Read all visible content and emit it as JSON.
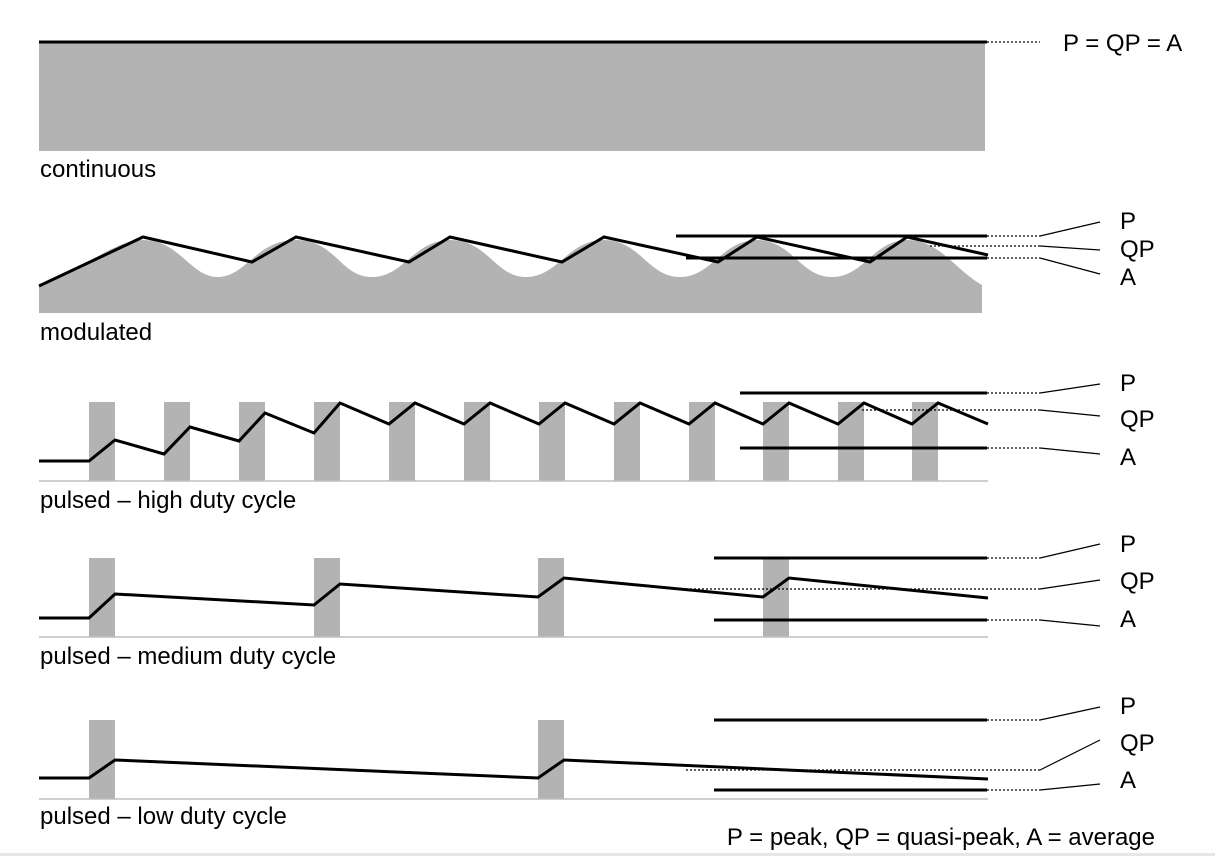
{
  "diagram": {
    "top_label": "P = QP = A",
    "legend": "P = peak, QP = quasi-peak, A = average",
    "colors": {
      "fill": "#b3b3b3",
      "line": "#000000",
      "baseline": "#bfbfbf"
    },
    "panels": [
      {
        "id": "continuous",
        "caption": "continuous"
      },
      {
        "id": "modulated",
        "caption": "modulated",
        "labels": {
          "p": "P",
          "qp": "QP",
          "a": "A"
        }
      },
      {
        "id": "high",
        "caption": "pulsed – high duty cycle",
        "labels": {
          "p": "P",
          "qp": "QP",
          "a": "A"
        }
      },
      {
        "id": "medium",
        "caption": "pulsed – medium duty cycle",
        "labels": {
          "p": "P",
          "qp": "QP",
          "a": "A"
        }
      },
      {
        "id": "low",
        "caption": "pulsed – low duty cycle",
        "labels": {
          "p": "P",
          "qp": "QP",
          "a": "A"
        }
      }
    ]
  }
}
